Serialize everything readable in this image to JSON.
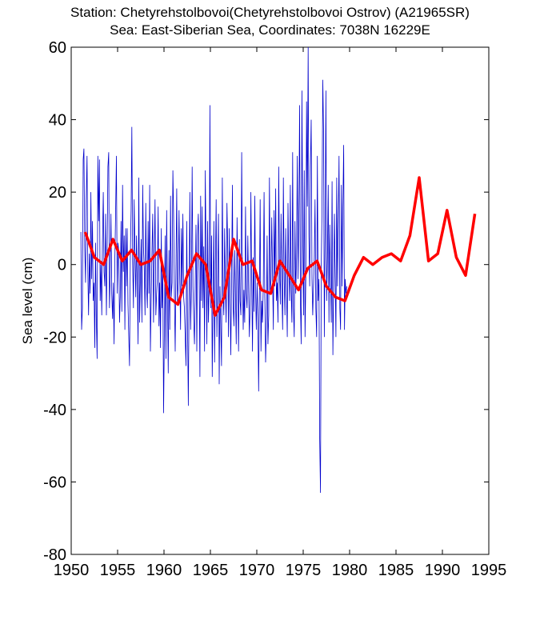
{
  "chart_data": {
    "type": "line",
    "title": "Station: Chetyrehstolbovoi(Chetyrehstolbovoi  Ostrov)  (A21965SR)",
    "subtitle": "Sea: East-Siberian Sea, Coordinates: 7038N 16229E",
    "xlabel": "",
    "ylabel": "Sea level (cm)",
    "xlim": [
      1950,
      1995
    ],
    "ylim": [
      -80,
      60
    ],
    "grid": false,
    "x_ticks": [
      1950,
      1955,
      1960,
      1965,
      1970,
      1975,
      1980,
      1985,
      1990,
      1995
    ],
    "y_ticks": [
      -80,
      -60,
      -40,
      -20,
      0,
      20,
      40,
      60
    ],
    "series": [
      {
        "kind": "monthly",
        "color": "#0000cc",
        "x_start": 1951.04,
        "x_step": 0.0833,
        "values": [
          9,
          -18,
          -12,
          29,
          32,
          5,
          -5,
          18,
          30,
          -2,
          -14,
          3,
          -8,
          20,
          -4,
          12,
          -10,
          -5,
          -23,
          6,
          -15,
          -26,
          30,
          12,
          29,
          -10,
          0,
          -14,
          6,
          20,
          -2,
          -6,
          14,
          -14,
          3,
          27,
          31,
          -12,
          -3,
          14,
          -8,
          -15,
          -5,
          -22,
          2,
          14,
          30,
          -8,
          6,
          4,
          -16,
          -9,
          12,
          -13,
          22,
          -2,
          8,
          -18,
          10,
          -6,
          10,
          -11,
          -20,
          -28,
          2,
          15,
          38,
          1,
          -12,
          18,
          3,
          -9,
          8,
          -5,
          -22,
          24,
          -16,
          -4,
          7,
          -16,
          22,
          5,
          -1,
          -14,
          17,
          -6,
          -12,
          12,
          -8,
          22,
          -24,
          -9,
          4,
          14,
          -16,
          2,
          18,
          -14,
          -8,
          -4,
          16,
          -17,
          -5,
          -23,
          10,
          -12,
          -2,
          -41,
          -20,
          8,
          -26,
          15,
          -9,
          -30,
          4,
          -18,
          19,
          -9,
          -5,
          26,
          14,
          -8,
          -24,
          -2,
          21,
          -11,
          -5,
          15,
          -3,
          -18,
          10,
          -6,
          14,
          -9,
          -12,
          -20,
          -28,
          12,
          -16,
          -39,
          -10,
          20,
          -18,
          -7,
          27,
          -6,
          -15,
          -22,
          -4,
          11,
          -24,
          8,
          14,
          -2,
          -31,
          19,
          -10,
          16,
          -12,
          5,
          -24,
          26,
          2,
          -22,
          12,
          -16,
          -6,
          44,
          -12,
          8,
          -31,
          -9,
          12,
          -27,
          -1,
          18,
          -20,
          -4,
          14,
          -33,
          -6,
          -18,
          -28,
          24,
          -9,
          -14,
          10,
          -7,
          -16,
          17,
          4,
          -20,
          10,
          -10,
          -25,
          -4,
          22,
          -11,
          -17,
          4,
          -8,
          -22,
          13,
          -3,
          -24,
          7,
          -10,
          -14,
          31,
          -1,
          -18,
          -7,
          -16,
          16,
          -8,
          -12,
          8,
          -6,
          -20,
          -11,
          20,
          -4,
          -24,
          2,
          -13,
          19,
          -7,
          -18,
          -5,
          -14,
          -35,
          -6,
          18,
          -24,
          -10,
          -16,
          -6,
          20,
          -9,
          -27,
          -17,
          8,
          -22,
          -14,
          24,
          -8,
          -4,
          13,
          -3,
          -18,
          15,
          -6,
          21,
          -10,
          -5,
          -16,
          27,
          -2,
          -11,
          14,
          -6,
          -18,
          24,
          -4,
          -14,
          10,
          -6,
          -20,
          17,
          -2,
          -10,
          22,
          -7,
          -16,
          31,
          -12,
          -20,
          12,
          -8,
          2,
          30,
          -4,
          14,
          44,
          -10,
          -22,
          48,
          10,
          -14,
          26,
          -20,
          -3,
          45,
          16,
          60,
          8,
          -6,
          27,
          40,
          -4,
          -14,
          -6,
          2,
          18,
          -12,
          -20,
          30,
          -10,
          -4,
          -48,
          -63,
          0,
          15,
          51,
          36,
          -20,
          8,
          48,
          -10,
          2,
          22,
          -16,
          11,
          -4,
          -16,
          23,
          -25,
          -8,
          14,
          -4,
          -20,
          24,
          -6,
          10,
          30,
          -12,
          -18,
          22,
          -6,
          16,
          33,
          -18,
          -4,
          -8,
          -6
        ]
      },
      {
        "kind": "annual",
        "color": "#ff0000",
        "x": [
          1951.5,
          1952.5,
          1953.5,
          1954.5,
          1955.5,
          1956.5,
          1957.5,
          1958.5,
          1959.5,
          1960.5,
          1961.5,
          1962.5,
          1963.5,
          1964.5,
          1965.5,
          1966.5,
          1967.5,
          1968.5,
          1969.5,
          1970.5,
          1971.5,
          1972.5,
          1973.5,
          1974.5,
          1975.5,
          1976.5,
          1977.5,
          1978.5,
          1979.5,
          1980.5,
          1981.5,
          1982.5,
          1983.5,
          1984.5,
          1985.5,
          1986.5,
          1987.5,
          1988.5,
          1989.5,
          1990.5,
          1991.5,
          1992.5,
          1993.5
        ],
        "values": [
          9,
          2,
          0,
          7,
          1,
          4,
          0,
          1,
          4,
          -9,
          -11,
          -3,
          3,
          0,
          -14,
          -9,
          7,
          0,
          1,
          -7,
          -8,
          1,
          -3,
          -7,
          -1,
          1,
          -6,
          -9,
          -10,
          -3,
          2,
          0,
          2,
          3,
          1,
          8,
          24,
          1,
          3,
          15,
          2,
          -3,
          14
        ]
      }
    ]
  }
}
